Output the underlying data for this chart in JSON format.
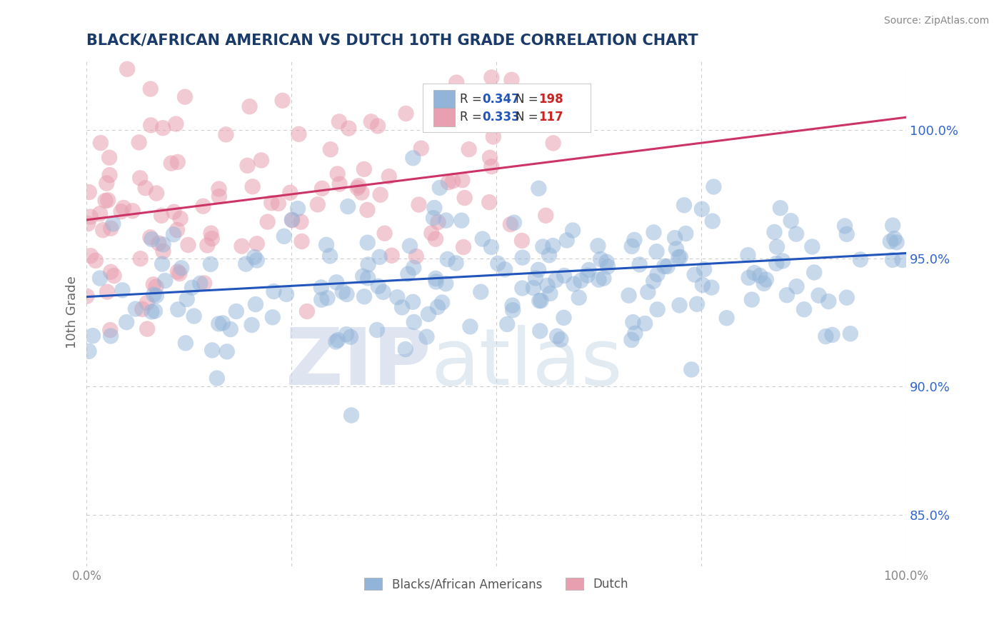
{
  "title": "BLACK/AFRICAN AMERICAN VS DUTCH 10TH GRADE CORRELATION CHART",
  "source": "Source: ZipAtlas.com",
  "ylabel": "10th Grade",
  "blue_R": 0.347,
  "blue_N": 198,
  "pink_R": 0.333,
  "pink_N": 117,
  "blue_label": "Blacks/African Americans",
  "pink_label": "Dutch",
  "blue_color": "#92b4d9",
  "pink_color": "#e8a0b0",
  "blue_line_color": "#2255bb",
  "pink_line_color": "#cc3366",
  "legend_R_color": "#2255bb",
  "legend_N_color": "#cc2222",
  "title_color": "#1a3a6a",
  "ytick_color": "#3366cc",
  "ytick_labels": [
    "85.0%",
    "90.0%",
    "95.0%",
    "100.0%"
  ],
  "ytick_values": [
    0.85,
    0.9,
    0.95,
    1.0
  ],
  "xlim": [
    0.0,
    1.0
  ],
  "ylim": [
    0.83,
    1.028
  ],
  "blue_trend_x0": 0.0,
  "blue_trend_x1": 1.0,
  "blue_trend_y0": 0.935,
  "blue_trend_y1": 0.952,
  "pink_trend_x0": 0.0,
  "pink_trend_x1": 1.0,
  "pink_trend_y0": 0.965,
  "pink_trend_y1": 1.005,
  "background_color": "#ffffff",
  "grid_color": "#cccccc",
  "watermark_zip": "ZIP",
  "watermark_atlas": "atlas",
  "seed": 123
}
